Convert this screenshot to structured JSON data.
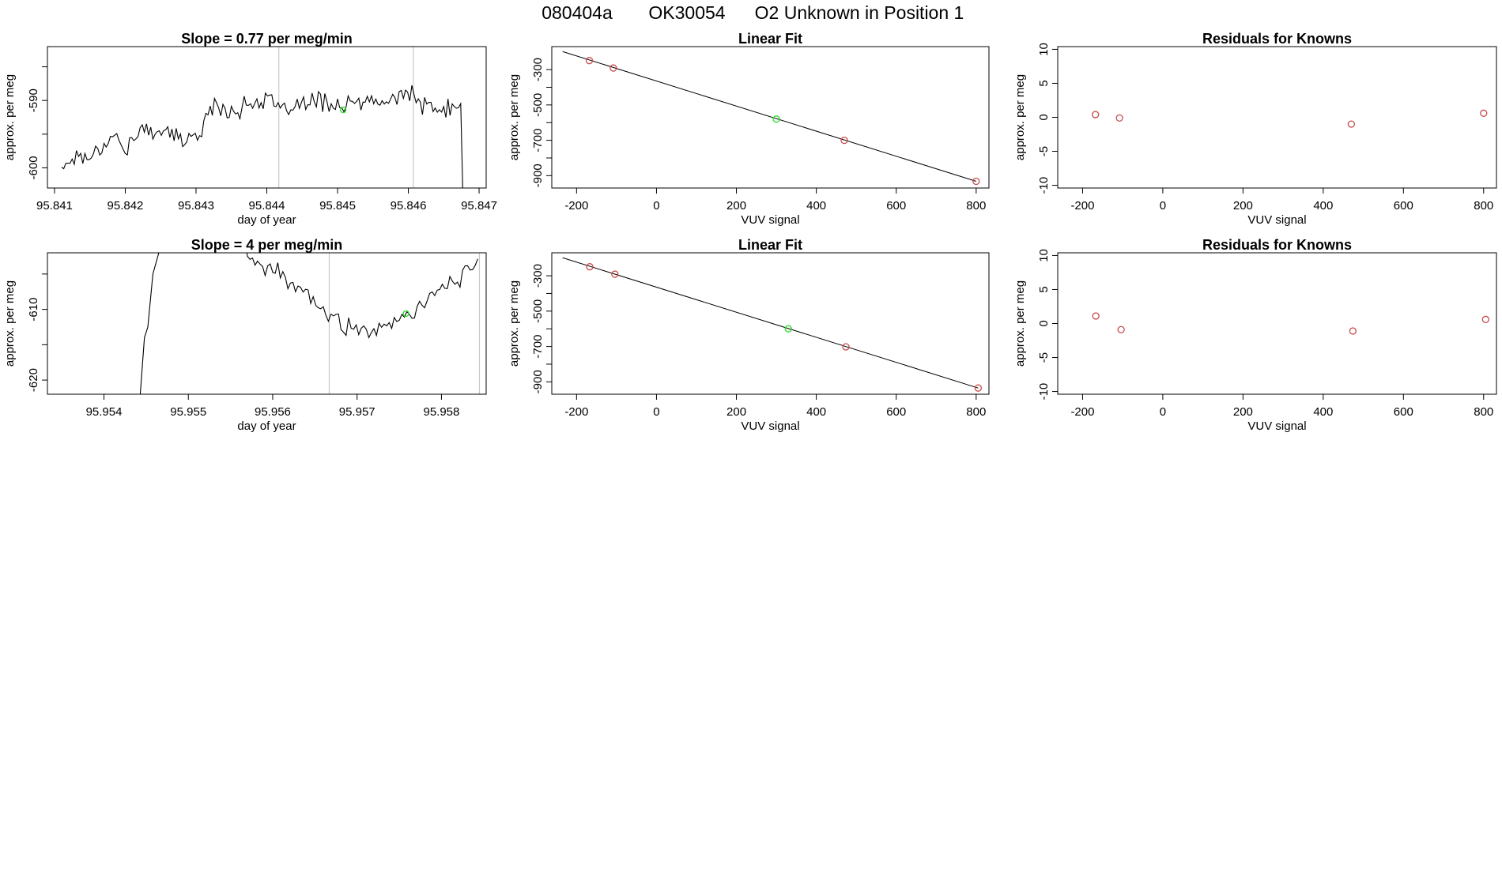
{
  "header": {
    "run_id": "080404a",
    "tank_id": "OK30054",
    "description": "O2 Unknown in Position  1"
  },
  "colors": {
    "trace": "#000000",
    "known_point": "#c94a4a",
    "unknown_point": "#33dd33",
    "marker_line": "#c8c8c8",
    "frame": "#000000"
  },
  "chart_data": [
    {
      "id": "ts1",
      "type": "line",
      "title": "Slope =  0.77  per meg/min",
      "xlabel": "day of year",
      "ylabel": "approx. per meg",
      "xlim": [
        95.8409,
        95.8471
      ],
      "ylim": [
        -603,
        -582
      ],
      "xticks": [
        95.841,
        95.842,
        95.843,
        95.844,
        95.845,
        95.846,
        95.847
      ],
      "xtick_labels": [
        "95.841",
        "95.842",
        "95.843",
        "95.844",
        "95.845",
        "95.846",
        "95.847"
      ],
      "yticks": [
        -600,
        -595,
        -590,
        -585
      ],
      "ytick_labels": [
        "-600",
        "",
        "-590",
        ""
      ],
      "vlines": [
        95.84417,
        95.84607
      ],
      "x_start": 95.8411,
      "x_end": 95.84675,
      "x_step": 3e-05,
      "knots": [
        [
          95.8411,
          -600
        ],
        [
          95.8413,
          -598
        ],
        [
          95.8415,
          -598.5
        ],
        [
          95.8418,
          -595
        ],
        [
          95.842,
          -597
        ],
        [
          95.8422,
          -595
        ],
        [
          95.8425,
          -594
        ],
        [
          95.8428,
          -596
        ],
        [
          95.843,
          -595.5
        ],
        [
          95.8432,
          -591
        ],
        [
          95.8435,
          -591.5
        ],
        [
          95.8438,
          -590.5
        ],
        [
          95.844,
          -589.5
        ],
        [
          95.8442,
          -592
        ],
        [
          95.8445,
          -590.5
        ],
        [
          95.8448,
          -590
        ],
        [
          95.8451,
          -591
        ],
        [
          95.8454,
          -590
        ],
        [
          95.8457,
          -590.5
        ],
        [
          95.846,
          -588.5
        ],
        [
          95.8462,
          -591
        ],
        [
          95.8465,
          -591.5
        ],
        [
          95.8467,
          -591
        ]
      ],
      "wiggle_amp": 1.8,
      "end_drop": [
        95.84677,
        -604
      ],
      "unknown_marker": [
        95.84508,
        -591.4
      ]
    },
    {
      "id": "fit1",
      "type": "scatter",
      "title": "Linear Fit",
      "xlabel": "VUV signal",
      "ylabel": "approx. per meg",
      "xlim": [
        -262,
        832
      ],
      "ylim": [
        -970,
        -170
      ],
      "xticks": [
        -200,
        0,
        200,
        400,
        600,
        800
      ],
      "xtick_labels": [
        "-200",
        "0",
        "200",
        "400",
        "600",
        "800"
      ],
      "yticks": [
        -900,
        -800,
        -700,
        -600,
        -500,
        -400,
        -300
      ],
      "ytick_labels": [
        "-900",
        "",
        "-700",
        "",
        "-500",
        "",
        "-300"
      ],
      "fit_line": [
        [
          -235,
          -198
        ],
        [
          800,
          -932
        ]
      ],
      "knowns": [
        [
          -168,
          -249
        ],
        [
          -108,
          -291
        ],
        [
          470,
          -700
        ],
        [
          800,
          -932
        ]
      ],
      "unknown": [
        300,
        -580
      ]
    },
    {
      "id": "res1",
      "type": "scatter",
      "title": "Residuals for Knowns",
      "xlabel": "VUV signal",
      "ylabel": "approx. per meg",
      "xlim": [
        -262,
        832
      ],
      "ylim": [
        -10.4,
        10.4
      ],
      "xticks": [
        -200,
        0,
        200,
        400,
        600,
        800
      ],
      "xtick_labels": [
        "-200",
        "0",
        "200",
        "400",
        "600",
        "800"
      ],
      "yticks": [
        -10,
        -5,
        0,
        5,
        10
      ],
      "ytick_labels": [
        "-10",
        "-5",
        "0",
        "5",
        "10"
      ],
      "knowns": [
        [
          -168,
          0.4
        ],
        [
          -108,
          -0.1
        ],
        [
          470,
          -1.0
        ],
        [
          800,
          0.6
        ]
      ]
    },
    {
      "id": "ts2",
      "type": "line",
      "title": "Slope =  4  per meg/min",
      "xlabel": "day of year",
      "ylabel": "approx. per meg",
      "xlim": [
        95.95333,
        95.95853
      ],
      "ylim": [
        -622,
        -602
      ],
      "xticks": [
        95.954,
        95.955,
        95.956,
        95.957,
        95.958
      ],
      "xtick_labels": [
        "95.954",
        "95.955",
        "95.956",
        "95.957",
        "95.958"
      ],
      "yticks": [
        -620,
        -615,
        -610,
        -605
      ],
      "ytick_labels": [
        "-620",
        "",
        "-610",
        ""
      ],
      "vlines": [
        95.95667,
        95.95845
      ],
      "x_start": 95.9554,
      "x_end": 95.95843,
      "x_step": 3e-05,
      "knots": [
        [
          95.9554,
          -600
        ],
        [
          95.9557,
          -602
        ],
        [
          95.9559,
          -604
        ],
        [
          95.9561,
          -605
        ],
        [
          95.9563,
          -607
        ],
        [
          95.9566,
          -610
        ],
        [
          95.9568,
          -612
        ],
        [
          95.957,
          -613
        ],
        [
          95.9573,
          -613
        ],
        [
          95.9575,
          -612
        ],
        [
          95.9578,
          -609
        ],
        [
          95.958,
          -607
        ],
        [
          95.9583,
          -605
        ],
        [
          95.95843,
          -604
        ]
      ],
      "wiggle_amp": 1.5,
      "lead_in": [
        [
          95.95443,
          -622
        ],
        [
          95.95448,
          -614
        ],
        [
          95.95452,
          -612.5
        ],
        [
          95.95458,
          -605
        ],
        [
          95.95465,
          -602
        ],
        [
          95.95475,
          -600
        ]
      ],
      "top_join": [
        [
          95.95532,
          -600
        ],
        [
          95.95538,
          -601.5
        ],
        [
          95.9554,
          -600
        ]
      ],
      "unknown_marker": [
        95.95758,
        -610.6
      ]
    },
    {
      "id": "fit2",
      "type": "scatter",
      "title": "Linear Fit",
      "xlabel": "VUV signal",
      "ylabel": "approx. per meg",
      "xlim": [
        -262,
        832
      ],
      "ylim": [
        -970,
        -170
      ],
      "xticks": [
        -200,
        0,
        200,
        400,
        600,
        800
      ],
      "xtick_labels": [
        "-200",
        "0",
        "200",
        "400",
        "600",
        "800"
      ],
      "yticks": [
        -900,
        -800,
        -700,
        -600,
        -500,
        -400,
        -300
      ],
      "ytick_labels": [
        "-900",
        "",
        "-700",
        "",
        "-500",
        "",
        "-300"
      ],
      "fit_line": [
        [
          -235,
          -198
        ],
        [
          805,
          -935
        ]
      ],
      "knowns": [
        [
          -167,
          -249
        ],
        [
          -104,
          -291
        ],
        [
          474,
          -702
        ],
        [
          805,
          -935
        ]
      ],
      "unknown": [
        330,
        -600
      ]
    },
    {
      "id": "res2",
      "type": "scatter",
      "title": "Residuals for Knowns",
      "xlabel": "VUV signal",
      "ylabel": "approx. per meg",
      "xlim": [
        -262,
        832
      ],
      "ylim": [
        -10.4,
        10.4
      ],
      "xticks": [
        -200,
        0,
        200,
        400,
        600,
        800
      ],
      "xtick_labels": [
        "-200",
        "0",
        "200",
        "400",
        "600",
        "800"
      ],
      "yticks": [
        -10,
        -5,
        0,
        5,
        10
      ],
      "ytick_labels": [
        "-10",
        "-5",
        "0",
        "5",
        "10"
      ],
      "knowns": [
        [
          -167,
          1.1
        ],
        [
          -104,
          -0.9
        ],
        [
          474,
          -1.1
        ],
        [
          805,
          0.6
        ]
      ]
    }
  ]
}
